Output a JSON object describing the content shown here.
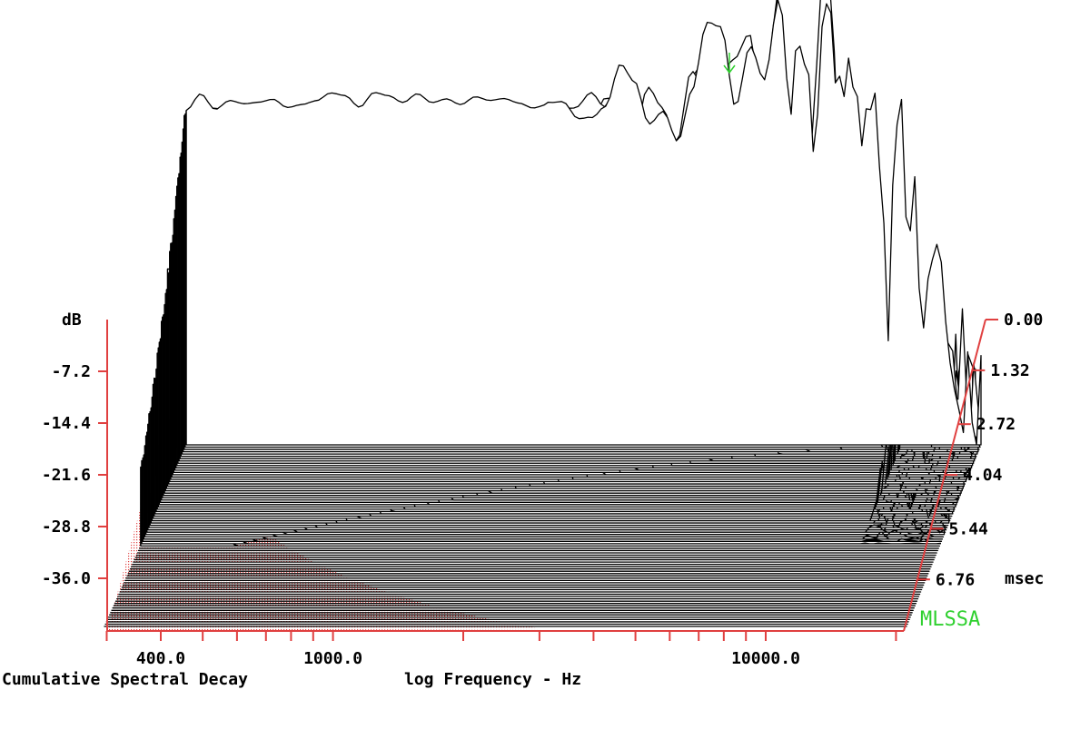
{
  "chart_data": {
    "type": "waterfall",
    "title": "Cumulative Spectral Decay",
    "xlabel": "log Frequency - Hz",
    "x_scale": "log",
    "x_ticks": [
      {
        "value": 400,
        "label": "400.0"
      },
      {
        "value": 1000,
        "label": "1000.0"
      },
      {
        "value": 10000,
        "label": "10000.0"
      }
    ],
    "x_range": [
      300,
      20000
    ],
    "ylabel": "dB",
    "y_ticks": [
      "-7.2",
      "-14.4",
      "-21.6",
      "-28.8",
      "-36.0"
    ],
    "y_range": [
      -43.2,
      0
    ],
    "zlabel": "msec",
    "z_ticks": [
      "0.00",
      "1.32",
      "2.72",
      "4.04",
      "5.44",
      "6.76"
    ],
    "z_range": [
      0,
      8.1
    ],
    "slices": 80,
    "brand": "MLSSA",
    "colors": {
      "curves": "#000000",
      "axis": "#e04040",
      "brand": "#2fd02f",
      "marker": "#2fd02f"
    }
  }
}
